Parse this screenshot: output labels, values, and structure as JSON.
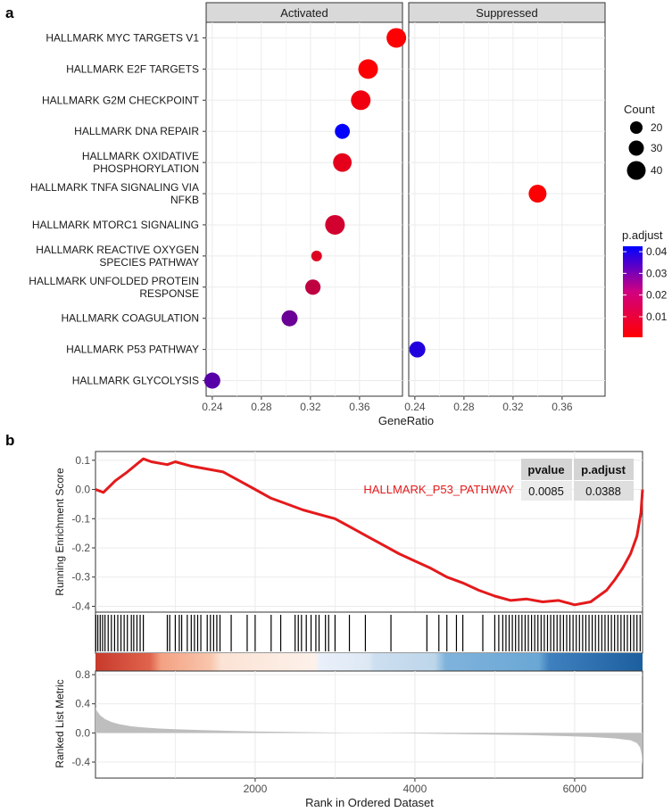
{
  "panel_a": {
    "label": "a",
    "facets": [
      "Activated",
      "Suppressed"
    ],
    "xlabel": "GeneRatio",
    "size_legend": {
      "title": "Count",
      "values": [
        "20",
        "30",
        "40"
      ]
    },
    "color_legend": {
      "title": "p.adjust",
      "ticks": [
        "0.04",
        "0.03",
        "0.02",
        "0.01"
      ]
    }
  },
  "panel_b": {
    "label": "b",
    "pathway_label": "HALLMARK_P53_PATHWAY",
    "stats_table": {
      "headers": [
        "pvalue",
        "p.adjust"
      ],
      "values": [
        "0.0085",
        "0.0388"
      ]
    },
    "top_ylabel": "Running Enrichment Score",
    "bottom_ylabel": "Ranked List Metric",
    "xlabel": "Rank in Ordered Dataset"
  },
  "chart_data": [
    {
      "type": "scatter",
      "title": "",
      "xlabel": "GeneRatio",
      "ylabel": "",
      "xlim": [
        0.235,
        0.395
      ],
      "xticks": [
        "0.24",
        "0.28",
        "0.32",
        "0.36"
      ],
      "grid": true,
      "legend_position": "right",
      "categories": [
        [
          "HALLMARK MYC TARGETS V1"
        ],
        [
          "HALLMARK E2F TARGETS"
        ],
        [
          "HALLMARK G2M CHECKPOINT"
        ],
        [
          "HALLMARK DNA REPAIR"
        ],
        [
          "HALLMARK OXIDATIVE",
          "PHOSPHORYLATION"
        ],
        [
          "HALLMARK TNFA SIGNALING VIA",
          "NFKB"
        ],
        [
          "HALLMARK MTORC1 SIGNALING"
        ],
        [
          "HALLMARK REACTIVE OXYGEN",
          "SPECIES PATHWAY"
        ],
        [
          "HALLMARK UNFOLDED PROTEIN",
          "RESPONSE"
        ],
        [
          "HALLMARK COAGULATION"
        ],
        [
          "HALLMARK P53 PATHWAY"
        ],
        [
          "HALLMARK GLYCOLYSIS"
        ]
      ],
      "series": [
        {
          "facet": "Activated",
          "points": [
            {
              "category": 0,
              "gene_ratio": 0.39,
              "count": 40,
              "p_adjust": 0.001
            },
            {
              "category": 1,
              "gene_ratio": 0.367,
              "count": 40,
              "p_adjust": 0.001
            },
            {
              "category": 2,
              "gene_ratio": 0.361,
              "count": 40,
              "p_adjust": 0.003
            },
            {
              "category": 3,
              "gene_ratio": 0.346,
              "count": 27,
              "p_adjust": 0.042
            },
            {
              "category": 4,
              "gene_ratio": 0.346,
              "count": 37,
              "p_adjust": 0.005
            },
            {
              "category": 6,
              "gene_ratio": 0.34,
              "count": 40,
              "p_adjust": 0.008
            },
            {
              "category": 7,
              "gene_ratio": 0.325,
              "count": 15,
              "p_adjust": 0.006
            },
            {
              "category": 8,
              "gene_ratio": 0.322,
              "count": 28,
              "p_adjust": 0.011
            },
            {
              "category": 9,
              "gene_ratio": 0.303,
              "count": 30,
              "p_adjust": 0.025
            },
            {
              "category": 11,
              "gene_ratio": 0.24,
              "count": 30,
              "p_adjust": 0.028
            }
          ]
        },
        {
          "facet": "Suppressed",
          "points": [
            {
              "category": 5,
              "gene_ratio": 0.34,
              "count": 35,
              "p_adjust": 0.001
            },
            {
              "category": 10,
              "gene_ratio": 0.242,
              "count": 30,
              "p_adjust": 0.037
            }
          ]
        }
      ],
      "size_legend": {
        "title": "Count",
        "values": [
          20,
          30,
          40
        ]
      },
      "color_legend": {
        "title": "p.adjust",
        "range": [
          0.0005,
          0.0425
        ],
        "ticks": [
          0.04,
          0.03,
          0.02,
          0.01
        ],
        "low_color": "#ff0000",
        "high_color": "#0000ff"
      }
    },
    {
      "type": "line",
      "title": "",
      "xlabel": "Rank in Ordered Dataset",
      "ylabel": "Running Enrichment Score",
      "xlim": [
        1,
        6850
      ],
      "ylim": [
        -0.42,
        0.13
      ],
      "yticks": [
        0.1,
        0.0,
        -0.1,
        -0.2,
        -0.3,
        -0.4
      ],
      "grid": true,
      "series": [
        {
          "name": "HALLMARK_P53_PATHWAY",
          "color": "#e41a1c",
          "x": [
            1,
            100,
            250,
            400,
            600,
            700,
            900,
            1000,
            1200,
            1400,
            1600,
            1800,
            2000,
            2200,
            2400,
            2600,
            2800,
            3000,
            3200,
            3400,
            3600,
            3800,
            4000,
            4200,
            4400,
            4600,
            4800,
            5000,
            5200,
            5400,
            5600,
            5800,
            6000,
            6200,
            6400,
            6500,
            6600,
            6700,
            6780,
            6830,
            6850
          ],
          "y": [
            0.0,
            -0.01,
            0.03,
            0.06,
            0.105,
            0.095,
            0.085,
            0.095,
            0.08,
            0.07,
            0.06,
            0.03,
            0.0,
            -0.03,
            -0.05,
            -0.07,
            -0.085,
            -0.1,
            -0.13,
            -0.16,
            -0.19,
            -0.22,
            -0.245,
            -0.27,
            -0.3,
            -0.32,
            -0.345,
            -0.365,
            -0.38,
            -0.375,
            -0.385,
            -0.38,
            -0.395,
            -0.385,
            -0.345,
            -0.31,
            -0.27,
            -0.22,
            -0.16,
            -0.08,
            0.0
          ]
        }
      ],
      "gene_hit_ranks": [
        5,
        30,
        60,
        90,
        120,
        160,
        200,
        240,
        280,
        320,
        360,
        400,
        450,
        480,
        520,
        560,
        600,
        900,
        930,
        1000,
        1050,
        1080,
        1150,
        1200,
        1240,
        1280,
        1320,
        1400,
        1440,
        1480,
        1520,
        1560,
        1700,
        1900,
        2000,
        2200,
        2320,
        2500,
        2540,
        2580,
        2640,
        2700,
        2760,
        2800,
        2880,
        2920,
        3000,
        3180,
        3380,
        3700,
        4150,
        4300,
        4400,
        4520,
        4600,
        4850,
        5000,
        5050,
        5100,
        5140,
        5180,
        5220,
        5260,
        5300,
        5340,
        5380,
        5420,
        5460,
        5500,
        5540,
        5580,
        5620,
        5660,
        5700,
        5740,
        5780,
        5820,
        5860,
        5900,
        5940,
        5980,
        6020,
        6060,
        6100,
        6140,
        6180,
        6220,
        6260,
        6300,
        6340,
        6380,
        6420,
        6460,
        6500,
        6540,
        6580,
        6620,
        6660,
        6700,
        6740,
        6780,
        6820
      ]
    },
    {
      "type": "area",
      "title": "",
      "xlabel": "Rank in Ordered Dataset",
      "ylabel": "Ranked List Metric",
      "xlim": [
        1,
        6850
      ],
      "ylim": [
        -0.62,
        0.85
      ],
      "yticks": [
        0.8,
        0.4,
        0.0,
        -0.4
      ],
      "xticks": [
        2000,
        4000,
        6000
      ],
      "grid": true,
      "series": [
        {
          "name": "",
          "color": "#bebebe",
          "x": [
            1,
            20,
            60,
            120,
            200,
            300,
            450,
            600,
            800,
            1000,
            1300,
            1600,
            2000,
            2500,
            3000,
            3400,
            3800,
            4200,
            4600,
            5000,
            5400,
            5800,
            6200,
            6500,
            6700,
            6780,
            6820,
            6840,
            6850
          ],
          "y": [
            0.35,
            0.3,
            0.24,
            0.19,
            0.15,
            0.12,
            0.09,
            0.075,
            0.06,
            0.05,
            0.04,
            0.03,
            0.02,
            0.012,
            0.005,
            0.0,
            -0.005,
            -0.01,
            -0.016,
            -0.022,
            -0.03,
            -0.04,
            -0.055,
            -0.075,
            -0.1,
            -0.14,
            -0.2,
            -0.3,
            -0.45
          ]
        }
      ]
    }
  ]
}
